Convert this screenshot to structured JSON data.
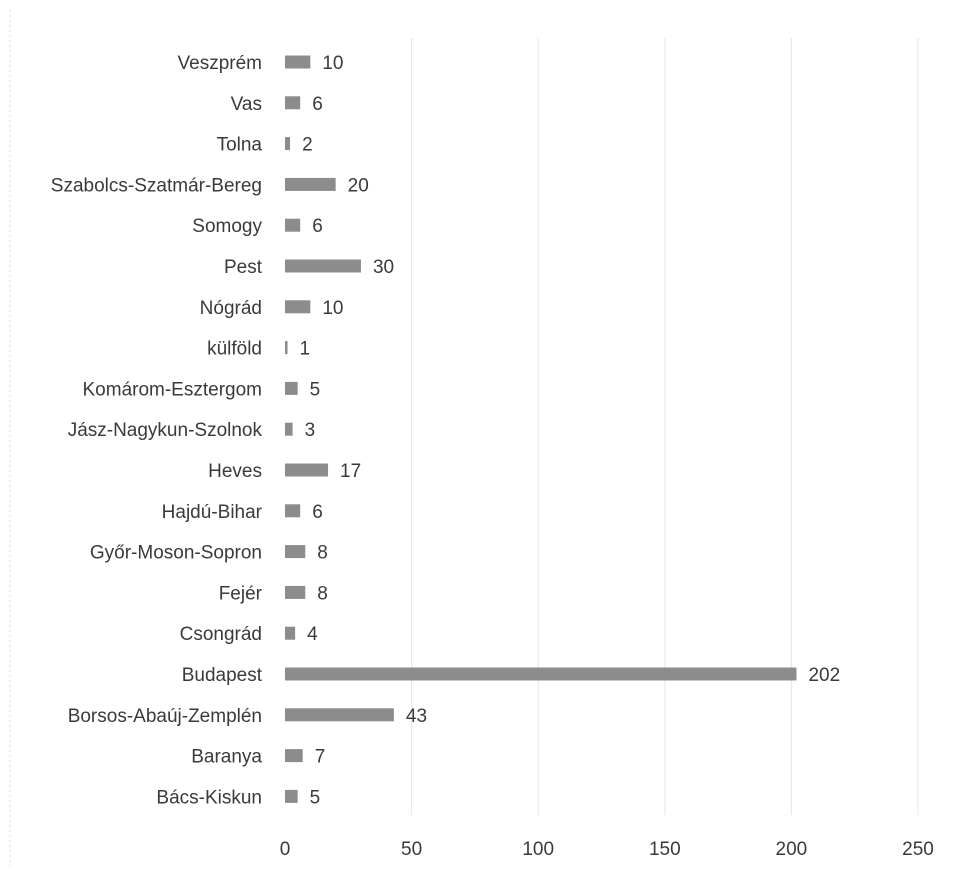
{
  "chart_data": {
    "type": "bar",
    "orientation": "horizontal",
    "title": "",
    "xlabel": "",
    "ylabel": "",
    "categories": [
      "Veszprém",
      "Vas",
      "Tolna",
      "Szabolcs-Szatmár-Bereg",
      "Somogy",
      "Pest",
      "Nógrád",
      "külföld",
      "Komárom-Esztergom",
      "Jász-Nagykun-Szolnok",
      "Heves",
      "Hajdú-Bihar",
      "Győr-Moson-Sopron",
      "Fejér",
      "Csongrád",
      "Budapest",
      "Borsos-Abaúj-Zemplén",
      "Baranya",
      "Bács-Kiskun"
    ],
    "values": [
      10,
      6,
      2,
      20,
      6,
      30,
      10,
      1,
      5,
      3,
      17,
      6,
      8,
      8,
      4,
      202,
      43,
      7,
      5
    ],
    "xlim": [
      0,
      250
    ],
    "x_ticks": [
      0,
      50,
      100,
      150,
      200,
      250
    ],
    "grid": true,
    "data_labels": true,
    "legend": "none",
    "colors": {
      "bar": "#8c8c8c",
      "text": "#3a3a3a",
      "grid": "#e6e6e6"
    }
  }
}
